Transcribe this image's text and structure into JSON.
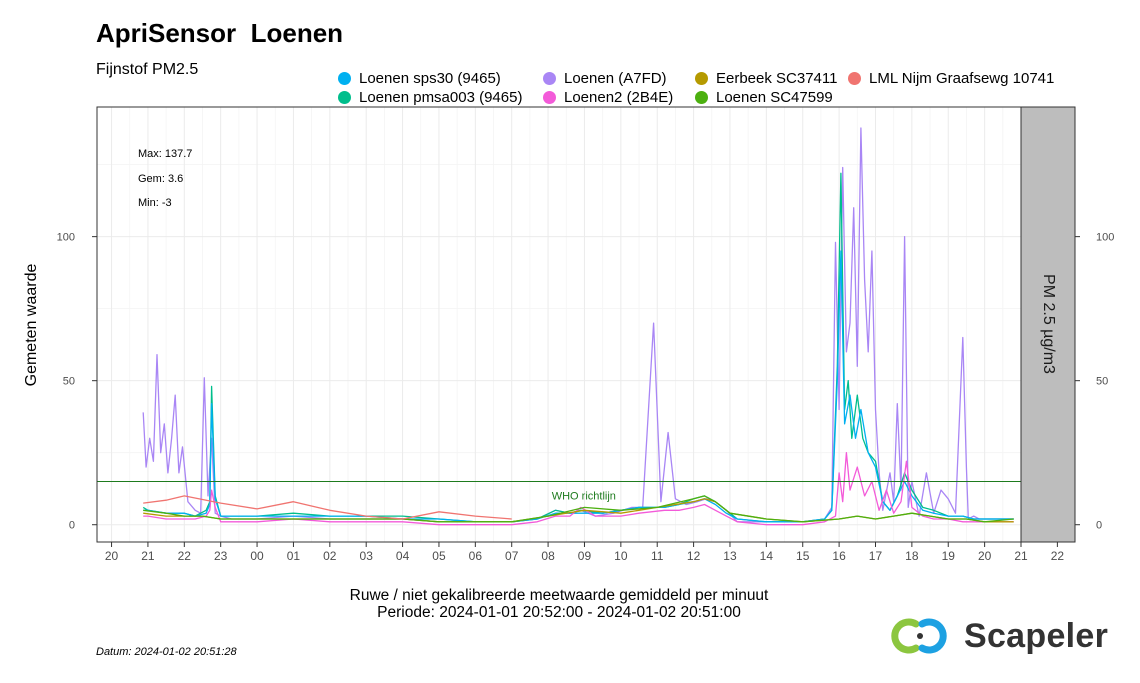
{
  "header": {
    "title": "ApriSensor  Loenen",
    "subtitle": "Fijnstof PM2.5"
  },
  "legend": [
    {
      "name": "Loenen sps30 (9465)",
      "color": "#00b0f0"
    },
    {
      "name": "Loenen (A7FD)",
      "color": "#a986f5"
    },
    {
      "name": "Eerbeek SC37411",
      "color": "#b59a00"
    },
    {
      "name": "LML Nijm Graafsewg 10741",
      "color": "#f07470"
    },
    {
      "name": "Loenen pmsa003 (9465)",
      "color": "#00be8c"
    },
    {
      "name": "Loenen2 (2B4E)",
      "color": "#f35bd9"
    },
    {
      "name": "Loenen SC47599",
      "color": "#4cb010"
    }
  ],
  "stats": {
    "max": "Max: 137.7",
    "gem": "Gem: 3.6",
    "min": "Min: -3"
  },
  "axis": {
    "ylabel": "Gemeten waarde",
    "xlabel_line1": "Ruwe / niet gekalibreerde meetwaarde gemiddeld per minuut",
    "xlabel_line2": "Periode: 2024-01-01 20:52:00 - 2024-01-02 20:51:00",
    "strip_label": "PM 2.5 µg/m3"
  },
  "footer": {
    "datum": "Datum: 2024-01-02 20:51:28",
    "brand": "Scapeler"
  },
  "chart_data": {
    "type": "line",
    "xlim_hours": [
      19.6,
      45.0
    ],
    "ylim": [
      -6,
      145
    ],
    "grid": true,
    "legend_placement": "top",
    "x_ticks": [
      {
        "h": 20,
        "label": "20"
      },
      {
        "h": 21,
        "label": "21"
      },
      {
        "h": 22,
        "label": "22"
      },
      {
        "h": 23,
        "label": "23"
      },
      {
        "h": 24,
        "label": "00"
      },
      {
        "h": 25,
        "label": "01"
      },
      {
        "h": 26,
        "label": "02"
      },
      {
        "h": 27,
        "label": "03"
      },
      {
        "h": 28,
        "label": "04"
      },
      {
        "h": 29,
        "label": "05"
      },
      {
        "h": 30,
        "label": "06"
      },
      {
        "h": 31,
        "label": "07"
      },
      {
        "h": 32,
        "label": "08"
      },
      {
        "h": 33,
        "label": "09"
      },
      {
        "h": 34,
        "label": "10"
      },
      {
        "h": 35,
        "label": "11"
      },
      {
        "h": 36,
        "label": "12"
      },
      {
        "h": 37,
        "label": "13"
      },
      {
        "h": 38,
        "label": "14"
      },
      {
        "h": 39,
        "label": "15"
      },
      {
        "h": 40,
        "label": "16"
      },
      {
        "h": 41,
        "label": "17"
      },
      {
        "h": 42,
        "label": "18"
      },
      {
        "h": 43,
        "label": "19"
      },
      {
        "h": 44,
        "label": "20"
      },
      {
        "h": 45,
        "label": "21"
      },
      {
        "h": 46,
        "label": "22"
      }
    ],
    "y_ticks": [
      0,
      50,
      100
    ],
    "reference_lines": [
      {
        "value": 15,
        "label": "WHO richtlijn",
        "color": "#1e7b1e",
        "label_x_hour": 32.1
      }
    ],
    "series": [
      {
        "name": "Loenen (A7FD)",
        "color": "#a986f5",
        "x": [
          20.87,
          20.95,
          21.05,
          21.15,
          21.25,
          21.35,
          21.45,
          21.55,
          21.65,
          21.75,
          21.85,
          21.95,
          22.1,
          22.3,
          22.45,
          22.55,
          22.65,
          22.75,
          22.85,
          23.0,
          23.3,
          24.0,
          25.0,
          26.0,
          27.0,
          28.0,
          29.0,
          30.0,
          31.0,
          31.7,
          32.2,
          32.6,
          32.9,
          33.3,
          33.8,
          34.3,
          34.6,
          34.9,
          35.1,
          35.3,
          35.5,
          35.8,
          36.1,
          36.35,
          36.6,
          36.9,
          37.2,
          38.0,
          39.0,
          39.6,
          39.8,
          39.9,
          40.0,
          40.1,
          40.2,
          40.3,
          40.4,
          40.5,
          40.6,
          40.7,
          40.8,
          40.9,
          41.0,
          41.1,
          41.2,
          41.4,
          41.5,
          41.6,
          41.7,
          41.8,
          41.9,
          42.0,
          42.2,
          42.4,
          42.6,
          42.8,
          43.0,
          43.2,
          43.4,
          43.5,
          43.55,
          43.7,
          43.85,
          44.0,
          44.3,
          44.6,
          44.8
        ],
        "y": [
          39,
          20,
          30,
          22,
          59,
          25,
          35,
          18,
          30,
          45,
          18,
          27,
          8,
          5,
          4,
          51,
          10,
          30,
          4,
          3,
          2,
          2,
          3,
          2,
          2,
          2,
          1,
          1,
          1,
          2,
          5,
          4,
          5,
          3,
          4,
          6,
          6,
          70,
          8,
          32,
          9,
          7,
          8,
          9,
          8,
          5,
          1,
          1,
          1,
          2,
          6,
          98,
          40,
          124,
          60,
          70,
          110,
          55,
          137.7,
          85,
          60,
          95,
          40,
          18,
          5,
          18,
          8,
          42,
          12,
          100,
          6,
          15,
          3,
          18,
          4,
          12,
          9,
          4,
          65,
          20,
          2,
          3,
          2,
          2,
          2,
          2,
          2
        ]
      },
      {
        "name": "Loenen pmsa003 (9465)",
        "color": "#00be8c",
        "x": [
          20.87,
          21.0,
          21.5,
          22.0,
          22.3,
          22.6,
          22.7,
          22.75,
          22.85,
          23.0,
          23.3,
          24.0,
          25.0,
          26.0,
          27.0,
          28.0,
          29.0,
          30.0,
          31.0,
          31.7,
          32.2,
          32.6,
          32.9,
          33.5,
          34.5,
          35.2,
          35.6,
          36.0,
          36.3,
          36.6,
          36.9,
          37.2,
          38.0,
          39.0,
          39.6,
          39.8,
          39.95,
          40.05,
          40.15,
          40.25,
          40.35,
          40.5,
          40.65,
          40.8,
          41.0,
          41.2,
          41.4,
          41.6,
          41.8,
          42.0,
          42.3,
          42.6,
          43.0,
          43.4,
          43.7,
          44.0,
          44.4,
          44.8
        ],
        "y": [
          6,
          5,
          4,
          4,
          3,
          5,
          8,
          48,
          10,
          3,
          3,
          3,
          4,
          3,
          3,
          3,
          2,
          1,
          1,
          2,
          5,
          4,
          5,
          4,
          6,
          6,
          7,
          9,
          10,
          8,
          5,
          2,
          1,
          1,
          2,
          5,
          55,
          122,
          40,
          50,
          30,
          45,
          30,
          25,
          22,
          8,
          5,
          10,
          18,
          12,
          6,
          5,
          3,
          3,
          2,
          2,
          2,
          2
        ]
      },
      {
        "name": "Loenen sps30 (9465)",
        "color": "#00b0f0",
        "x": [
          20.87,
          21.0,
          21.5,
          22.0,
          22.3,
          22.6,
          22.7,
          22.75,
          22.85,
          23.0,
          23.3,
          24.0,
          25.0,
          26.0,
          27.0,
          28.0,
          29.0,
          30.0,
          31.0,
          31.7,
          32.2,
          32.6,
          32.9,
          33.5,
          34.5,
          35.2,
          35.6,
          36.0,
          36.3,
          36.6,
          36.9,
          37.2,
          38.0,
          39.0,
          39.6,
          39.8,
          39.95,
          40.05,
          40.15,
          40.3,
          40.45,
          40.6,
          40.8,
          41.0,
          41.2,
          41.4,
          41.6,
          41.8,
          42.0,
          42.3,
          42.6,
          43.0,
          43.4,
          43.7,
          44.0,
          44.4,
          44.8
        ],
        "y": [
          5,
          5,
          4,
          4,
          3,
          4,
          7,
          42,
          9,
          3,
          3,
          3,
          3,
          3,
          3,
          2,
          2,
          1,
          1,
          2,
          4,
          4,
          4,
          4,
          6,
          6,
          7,
          8,
          9,
          7,
          4,
          2,
          1,
          1,
          2,
          5,
          50,
          95,
          35,
          45,
          30,
          40,
          25,
          20,
          8,
          5,
          10,
          15,
          10,
          5,
          4,
          3,
          3,
          2,
          2,
          2,
          2
        ]
      },
      {
        "name": "Loenen2 (2B4E)",
        "color": "#f35bd9",
        "x": [
          20.87,
          21.0,
          21.5,
          22.0,
          22.3,
          22.6,
          22.7,
          22.75,
          22.85,
          23.0,
          23.3,
          24.0,
          25.0,
          26.0,
          27.0,
          28.0,
          29.0,
          30.0,
          31.0,
          31.7,
          32.2,
          32.6,
          32.9,
          33.3,
          34.0,
          34.5,
          35.2,
          35.6,
          36.0,
          36.3,
          36.6,
          36.9,
          37.2,
          38.0,
          39.0,
          39.6,
          39.9,
          40.0,
          40.1,
          40.2,
          40.3,
          40.5,
          40.7,
          40.9,
          41.1,
          41.3,
          41.5,
          41.7,
          41.85,
          42.0,
          42.3,
          42.6,
          43.0,
          43.4,
          43.7,
          44.0,
          44.4,
          44.8
        ],
        "y": [
          3,
          3,
          2,
          2,
          2,
          3,
          5,
          12,
          6,
          1,
          1,
          1,
          2,
          1,
          1,
          1,
          0,
          0,
          0,
          1,
          3,
          3,
          6,
          3,
          3,
          4,
          5,
          5,
          6,
          7,
          5,
          3,
          1,
          0,
          0,
          1,
          3,
          18,
          8,
          25,
          12,
          20,
          10,
          15,
          5,
          12,
          4,
          8,
          22,
          6,
          3,
          2,
          2,
          1,
          1,
          1,
          1,
          1
        ]
      },
      {
        "name": "Eerbeek SC37411",
        "color": "#b59a00",
        "x": [
          20.87,
          21.5,
          22.0,
          22.5,
          23.0,
          24.0,
          25.0,
          26.0,
          27.0,
          28.0,
          29.0,
          30.0,
          31.0,
          32.0,
          33.0,
          34.0,
          35.0,
          36.0,
          36.3,
          36.6,
          37.0,
          38.0,
          39.0,
          40.0,
          40.5,
          41.0,
          41.5,
          42.0,
          42.5,
          43.0,
          43.5,
          44.0,
          44.8
        ],
        "y": [
          4,
          3,
          3,
          3,
          2,
          2,
          2,
          2,
          2,
          2,
          1,
          1,
          1,
          3,
          5,
          4,
          6,
          8,
          9,
          8,
          4,
          2,
          1,
          2,
          3,
          2,
          3,
          4,
          3,
          2,
          2,
          1,
          1
        ]
      },
      {
        "name": "Loenen SC47599",
        "color": "#4cb010",
        "x": [
          20.87,
          21.5,
          22.0,
          22.5,
          23.0,
          24.0,
          25.0,
          26.0,
          27.0,
          28.0,
          29.0,
          30.0,
          31.0,
          32.0,
          33.0,
          34.0,
          35.0,
          36.0,
          36.3,
          36.6,
          37.0,
          38.0,
          39.0,
          40.0,
          40.5,
          41.0,
          41.5,
          42.0,
          42.5,
          43.0,
          43.5,
          44.0,
          44.8
        ],
        "y": [
          5,
          4,
          3,
          3,
          2,
          2,
          2,
          2,
          2,
          2,
          1,
          1,
          1,
          3,
          6,
          5,
          6,
          9,
          10,
          8,
          4,
          2,
          1,
          2,
          3,
          2,
          3,
          4,
          3,
          2,
          2,
          1,
          2
        ]
      },
      {
        "name": "LML Nijm Graafsewg 10741",
        "color": "#f07470",
        "x": [
          20.87,
          21.5,
          22.0,
          23.0,
          24.0,
          25.0,
          26.0,
          27.0,
          28.0,
          29.0,
          30.0,
          31.0
        ],
        "y": [
          7.5,
          8.5,
          10,
          7.5,
          5.5,
          8,
          5,
          3,
          2,
          4.5,
          3,
          2
        ]
      }
    ]
  }
}
